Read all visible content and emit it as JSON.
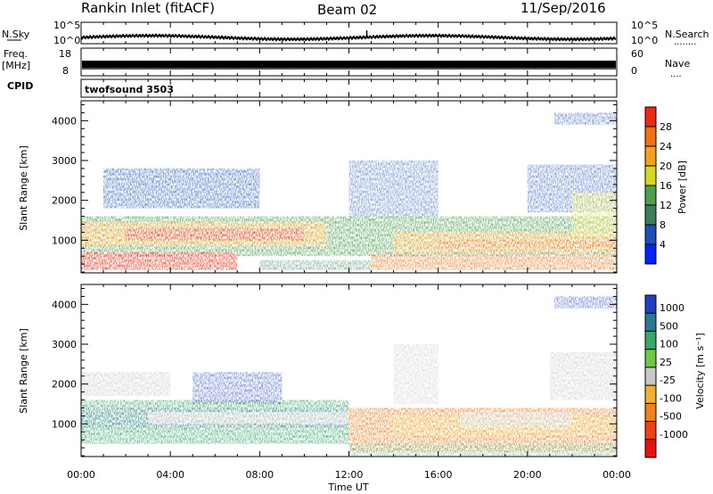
{
  "header": {
    "station": "Rankin Inlet (fitACF)",
    "beam": "Beam 02",
    "date": "11/Sep/2016"
  },
  "noise_panel": {
    "left_label": "N.Sky",
    "right_label": "N.Search",
    "right_dots": "........",
    "left_ticks": [
      "10^5",
      "10^0"
    ],
    "right_ticks": [
      "10^5",
      "10^0"
    ]
  },
  "freq_panel": {
    "left_label_line1": "Freq.",
    "left_label_line2": "[MHz]",
    "right_label": "Nave",
    "right_dots": "....",
    "left_ticks": [
      "18",
      "8"
    ],
    "right_ticks": [
      "60",
      "0"
    ]
  },
  "cpid_panel": {
    "label": "CPID",
    "program": "twofsound 3503"
  },
  "time_axis": {
    "title": "Time UT",
    "ticks": [
      "00:00",
      "04:00",
      "08:00",
      "12:00",
      "16:00",
      "20:00",
      "00:00"
    ]
  },
  "chart_data": [
    {
      "type": "heatmap",
      "name": "power",
      "ylabel": "Slant Range [km]",
      "ylim": [
        180,
        4500
      ],
      "yticks": [
        1000,
        2000,
        3000,
        4000
      ],
      "xlim_hours": [
        0,
        24
      ],
      "colorbar": {
        "label": "Power [dB]",
        "tick_labels": [
          "4",
          "8",
          "12",
          "16",
          "20",
          "24",
          "28"
        ],
        "colors": [
          "#0022ff",
          "#1c4fb8",
          "#3c7f5a",
          "#4ca050",
          "#d8d820",
          "#f4a21c",
          "#f07014",
          "#ee2a14"
        ]
      },
      "features": [
        {
          "band": "E/near range (near 300-600 km)",
          "hours": [
            0,
            7
          ],
          "power_dB": 28
        },
        {
          "band": "F-region (~900-1500 km)",
          "hours": [
            0,
            24
          ],
          "power_dB": [
            12,
            24
          ]
        },
        {
          "band": "far range (~2000-2800 km)",
          "hours": [
            1,
            8
          ],
          "power_dB": [
            4,
            10
          ]
        }
      ]
    },
    {
      "type": "heatmap",
      "name": "velocity",
      "ylabel": "Slant Range [km]",
      "ylim": [
        180,
        4500
      ],
      "yticks": [
        1000,
        2000,
        3000,
        4000
      ],
      "xlim_hours": [
        0,
        24
      ],
      "colorbar": {
        "label": "Velocity [m s⁻¹]",
        "tick_labels": [
          "1000",
          "500",
          "100",
          "25",
          "-25",
          "-100",
          "-500",
          "-1000"
        ],
        "colors": [
          "#2040c0",
          "#287890",
          "#38a868",
          "#70c848",
          "#c8c8c8",
          "#f0b030",
          "#f08020",
          "#f04018",
          "#e81010"
        ]
      },
      "features": [
        {
          "band": "F-region (~900-1500 km)",
          "hours": [
            0,
            11
          ],
          "velocity_ms": [
            25,
            500
          ]
        },
        {
          "band": "F-region (~500-1300 km)",
          "hours": [
            12,
            24
          ],
          "velocity_ms": [
            -500,
            -100
          ]
        },
        {
          "band": "ground scatter (~1200 km)",
          "hours": [
            3,
            12
          ],
          "velocity_ms": [
            -25,
            25
          ]
        }
      ]
    }
  ]
}
